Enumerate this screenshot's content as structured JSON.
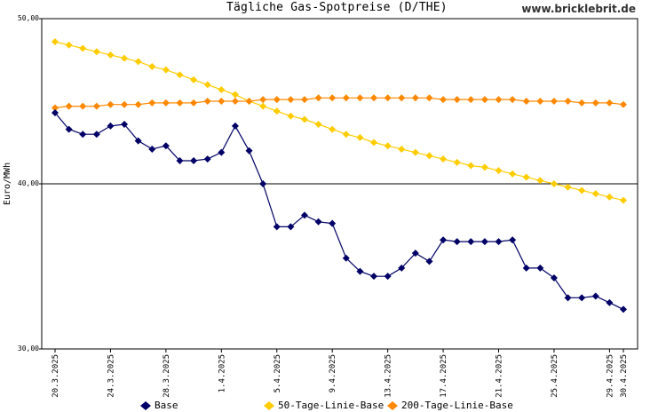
{
  "watermark": "www.bricklebrit.de",
  "chart_data": {
    "type": "line",
    "title": "Tägliche Gas-Spotpreise (D/THE)",
    "ylabel": "Euro/MWh",
    "xlabel": "",
    "ylim": [
      30,
      50
    ],
    "ytick_labels": [
      "30,00",
      "40,00",
      "50,00"
    ],
    "xtick_labels": [
      "20.3.2025",
      "24.3.2025",
      "28.3.2025",
      "1.4.2025",
      "5.4.2025",
      "9.4.2025",
      "13.4.2025",
      "17.4.2025",
      "21.4.2025",
      "25.4.2025",
      "29.4.2025",
      "30.4.2025"
    ],
    "x": [
      "20.3.2025",
      "21.3.2025",
      "22.3.2025",
      "23.3.2025",
      "24.3.2025",
      "25.3.2025",
      "26.3.2025",
      "27.3.2025",
      "28.3.2025",
      "29.3.2025",
      "30.3.2025",
      "31.3.2025",
      "1.4.2025",
      "2.4.2025",
      "3.4.2025",
      "4.4.2025",
      "5.4.2025",
      "6.4.2025",
      "7.4.2025",
      "8.4.2025",
      "9.4.2025",
      "10.4.2025",
      "11.4.2025",
      "12.4.2025",
      "13.4.2025",
      "14.4.2025",
      "15.4.2025",
      "16.4.2025",
      "17.4.2025",
      "18.4.2025",
      "19.4.2025",
      "20.4.2025",
      "21.4.2025",
      "22.4.2025",
      "23.4.2025",
      "24.4.2025",
      "25.4.2025",
      "26.4.2025",
      "27.4.2025",
      "28.4.2025",
      "29.4.2025",
      "30.4.2025"
    ],
    "grid": "horizontal line at 40",
    "legend_position": "bottom",
    "series": [
      {
        "name": "Base",
        "color": "#000066",
        "values": [
          44.3,
          43.3,
          43.0,
          43.0,
          43.5,
          43.6,
          42.6,
          42.1,
          42.3,
          41.4,
          41.4,
          41.5,
          41.9,
          43.5,
          42.0,
          40.0,
          37.4,
          37.4,
          38.1,
          37.7,
          37.6,
          35.5,
          34.7,
          34.4,
          34.4,
          34.9,
          35.8,
          35.3,
          36.6,
          36.5,
          36.5,
          36.5,
          36.5,
          36.6,
          34.9,
          34.9,
          34.3,
          33.1,
          33.1,
          33.2,
          32.8,
          32.4
        ]
      },
      {
        "name": "50-Tage-Linie-Base",
        "color": "#ffcc00",
        "values": [
          48.6,
          48.4,
          48.2,
          48.0,
          47.8,
          47.6,
          47.4,
          47.1,
          46.9,
          46.6,
          46.3,
          46.0,
          45.7,
          45.4,
          45.0,
          44.7,
          44.4,
          44.1,
          43.9,
          43.6,
          43.3,
          43.0,
          42.8,
          42.5,
          42.3,
          42.1,
          41.9,
          41.7,
          41.5,
          41.3,
          41.1,
          41.0,
          40.8,
          40.6,
          40.4,
          40.2,
          40.0,
          39.8,
          39.6,
          39.4,
          39.2,
          39.0
        ]
      },
      {
        "name": "200-Tage-Linie-Base",
        "color": "#ff8800",
        "values": [
          44.6,
          44.7,
          44.7,
          44.7,
          44.8,
          44.8,
          44.8,
          44.9,
          44.9,
          44.9,
          44.9,
          45.0,
          45.0,
          45.0,
          45.0,
          45.1,
          45.1,
          45.1,
          45.1,
          45.2,
          45.2,
          45.2,
          45.2,
          45.2,
          45.2,
          45.2,
          45.2,
          45.2,
          45.1,
          45.1,
          45.1,
          45.1,
          45.1,
          45.1,
          45.0,
          45.0,
          45.0,
          45.0,
          44.9,
          44.9,
          44.9,
          44.8
        ]
      }
    ]
  }
}
